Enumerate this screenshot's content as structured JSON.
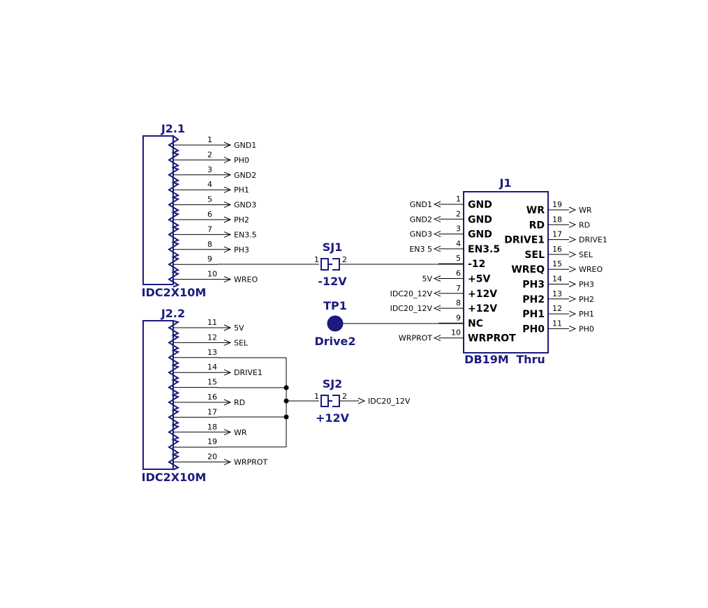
{
  "j21": {
    "ref": "J2.1",
    "part": "IDC2X10M",
    "pins": [
      {
        "num": "1",
        "net": "GND1"
      },
      {
        "num": "2",
        "net": "PH0"
      },
      {
        "num": "3",
        "net": "GND2"
      },
      {
        "num": "4",
        "net": "PH1"
      },
      {
        "num": "5",
        "net": "GND3"
      },
      {
        "num": "6",
        "net": "PH2"
      },
      {
        "num": "7",
        "net": "EN3.5"
      },
      {
        "num": "8",
        "net": "PH3"
      },
      {
        "num": "9",
        "net": ""
      },
      {
        "num": "10",
        "net": "WREO"
      }
    ]
  },
  "j22": {
    "ref": "J2.2",
    "part": "IDC2X10M",
    "pins": [
      {
        "num": "11",
        "net": "5V"
      },
      {
        "num": "12",
        "net": "SEL"
      },
      {
        "num": "13",
        "net": ""
      },
      {
        "num": "14",
        "net": "DRIVE1"
      },
      {
        "num": "15",
        "net": ""
      },
      {
        "num": "16",
        "net": "RD"
      },
      {
        "num": "17",
        "net": ""
      },
      {
        "num": "18",
        "net": "WR"
      },
      {
        "num": "19",
        "net": ""
      },
      {
        "num": "20",
        "net": "WRPROT"
      }
    ]
  },
  "sj1": {
    "ref": "SJ1",
    "value": "-12V",
    "pin1": "1",
    "pin2": "2"
  },
  "sj2": {
    "ref": "SJ2",
    "value": "+12V",
    "pin1": "1",
    "pin2": "2",
    "net": "IDC20_12V"
  },
  "tp1": {
    "ref": "TP1",
    "value": "Drive2"
  },
  "j1": {
    "ref": "J1",
    "part": "DB19M",
    "mount": "Thru",
    "left_pins": [
      {
        "num": "1",
        "name": "GND",
        "net": "GND1"
      },
      {
        "num": "2",
        "name": "GND",
        "net": "GND2"
      },
      {
        "num": "3",
        "name": "GND",
        "net": "GND3"
      },
      {
        "num": "4",
        "name": "EN3.5",
        "net": "EN3 5"
      },
      {
        "num": "5",
        "name": "-12",
        "net": ""
      },
      {
        "num": "6",
        "name": "+5V",
        "net": "5V"
      },
      {
        "num": "7",
        "name": "+12V",
        "net": "IDC20_12V"
      },
      {
        "num": "8",
        "name": "+12V",
        "net": "IDC20_12V"
      },
      {
        "num": "9",
        "name": "NC",
        "net": ""
      },
      {
        "num": "10",
        "name": "WRPROT",
        "net": "WRPROT"
      }
    ],
    "right_pins": [
      {
        "num": "19",
        "name": "WR",
        "net": "WR"
      },
      {
        "num": "18",
        "name": "RD",
        "net": "RD"
      },
      {
        "num": "17",
        "name": "DRIVE1",
        "net": "DRIVE1"
      },
      {
        "num": "16",
        "name": "SEL",
        "net": "SEL"
      },
      {
        "num": "15",
        "name": "WREQ",
        "net": "WREO"
      },
      {
        "num": "14",
        "name": "PH3",
        "net": "PH3"
      },
      {
        "num": "13",
        "name": "PH2",
        "net": "PH2"
      },
      {
        "num": "12",
        "name": "PH1",
        "net": "PH1"
      },
      {
        "num": "11",
        "name": "PH0",
        "net": "PH0"
      }
    ]
  }
}
